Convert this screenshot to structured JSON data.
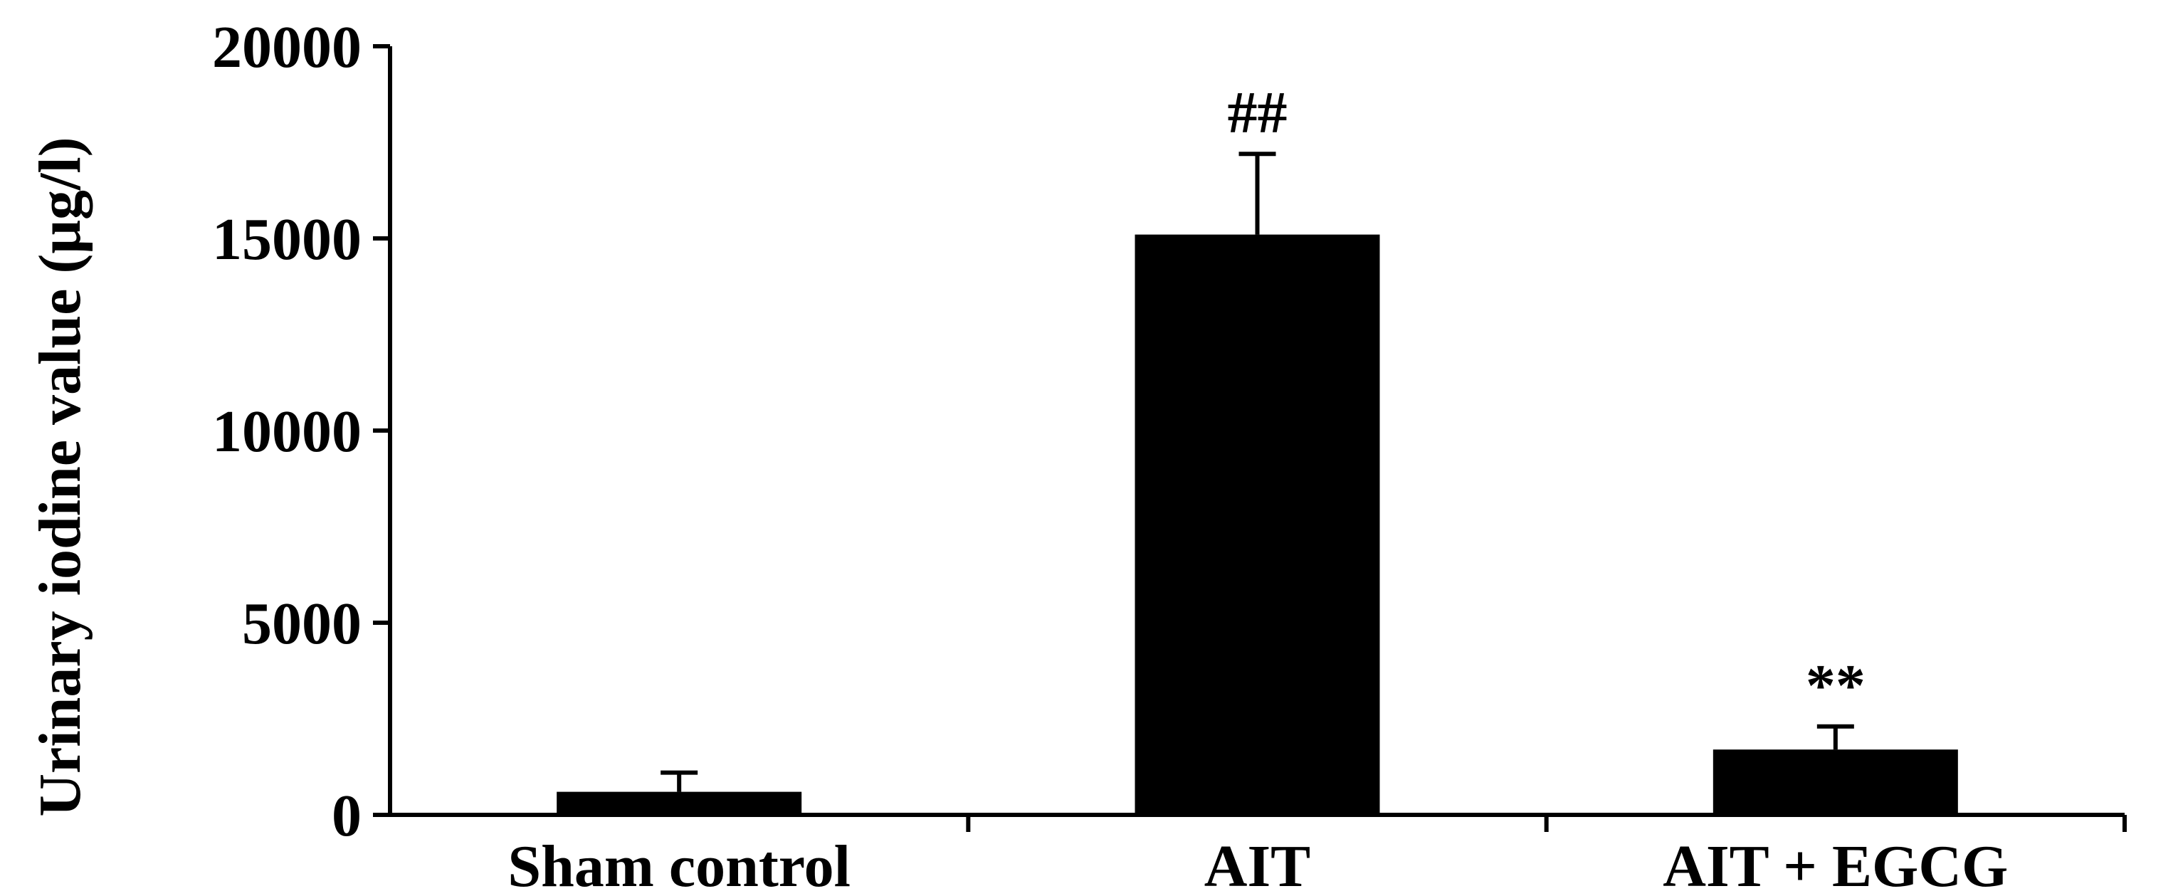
{
  "chart_data": {
    "type": "bar",
    "categories": [
      "Sham control",
      "AIT",
      "AIT + EGCG"
    ],
    "values": [
      600,
      15100,
      1700
    ],
    "errors": [
      500,
      2100,
      600
    ],
    "annotations": [
      "",
      "##",
      "**"
    ],
    "ylabel": "Urinary iodine value (μg/l)",
    "ylim": [
      0,
      20000
    ],
    "yticks": [
      0,
      5000,
      10000,
      15000,
      20000
    ],
    "ytick_labels": [
      "0",
      "5000",
      "10000",
      "15000",
      "20000"
    ],
    "grid": false,
    "colors": {
      "bar": "#000000",
      "axis": "#000000",
      "background": "#ffffff"
    }
  }
}
